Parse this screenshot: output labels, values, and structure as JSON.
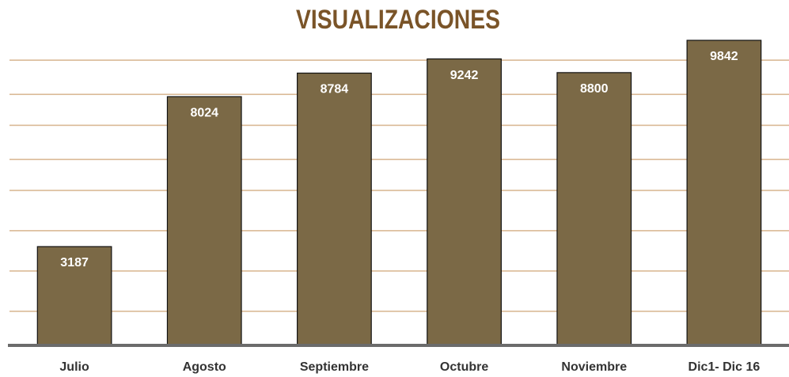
{
  "chart_data": {
    "type": "bar",
    "title": "VISUALIZACIONES",
    "categories": [
      "Julio",
      "Agosto",
      "Septiembre",
      "Octubre",
      "Noviembre",
      "Dic1- Dic 16"
    ],
    "values": [
      3187,
      8024,
      8784,
      9242,
      8800,
      9842
    ],
    "color": "#7b6946",
    "ylim": [
      0,
      9842
    ],
    "yticks": [
      1100,
      2400,
      3700,
      5000,
      6000,
      7100,
      8100,
      9200
    ],
    "grid": true
  }
}
